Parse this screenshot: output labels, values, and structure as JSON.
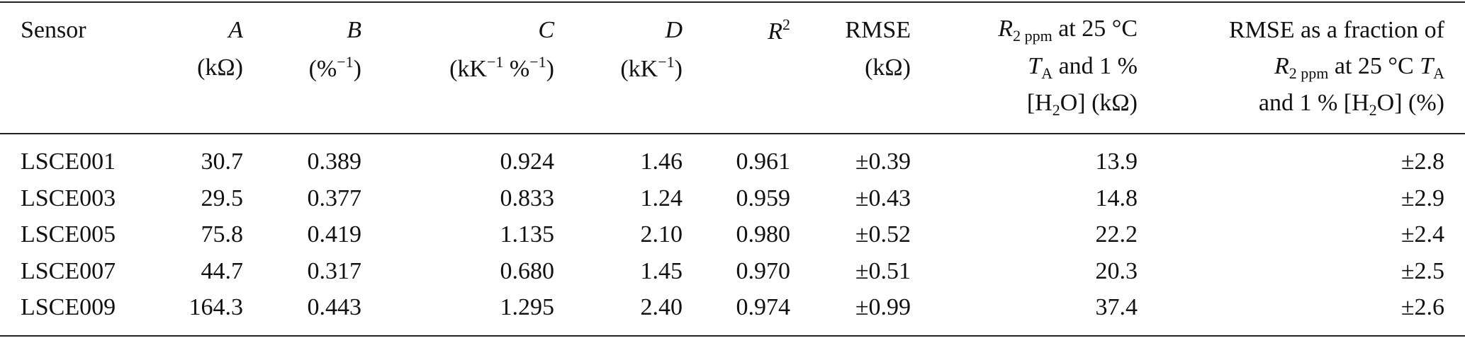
{
  "table": {
    "columns": [
      {
        "lines": [
          [
            {
              "text": "Sensor"
            }
          ]
        ]
      },
      {
        "lines": [
          [
            {
              "text": "A",
              "style": "italic"
            }
          ],
          [
            {
              "text": "(kΩ)"
            }
          ]
        ]
      },
      {
        "lines": [
          [
            {
              "text": "B",
              "style": "italic"
            }
          ],
          [
            {
              "text": "(%"
            },
            {
              "text": "−1",
              "style": "sup"
            },
            {
              "text": ")"
            }
          ]
        ]
      },
      {
        "lines": [
          [
            {
              "text": "C",
              "style": "italic"
            }
          ],
          [
            {
              "text": "(kK"
            },
            {
              "text": "−1",
              "style": "sup"
            },
            {
              "text": " %"
            },
            {
              "text": "−1",
              "style": "sup"
            },
            {
              "text": ")"
            }
          ]
        ]
      },
      {
        "lines": [
          [
            {
              "text": "D",
              "style": "italic"
            }
          ],
          [
            {
              "text": "(kK"
            },
            {
              "text": "−1",
              "style": "sup"
            },
            {
              "text": ")"
            }
          ]
        ]
      },
      {
        "lines": [
          [
            {
              "text": "R",
              "style": "italic"
            },
            {
              "text": "2",
              "style": "sup"
            }
          ]
        ]
      },
      {
        "lines": [
          [
            {
              "text": "RMSE"
            }
          ],
          [
            {
              "text": "(kΩ)"
            }
          ]
        ]
      },
      {
        "lines": [
          [
            {
              "text": "R",
              "style": "italic"
            },
            {
              "text": "2 ppm",
              "style": "sub"
            },
            {
              "text": " at 25 °C"
            }
          ],
          [
            {
              "text": "T",
              "style": "italic"
            },
            {
              "text": "A",
              "style": "sub"
            },
            {
              "text": " and 1 %"
            }
          ],
          [
            {
              "text": "[H"
            },
            {
              "text": "2",
              "style": "sub"
            },
            {
              "text": "O] (kΩ)"
            }
          ]
        ]
      },
      {
        "lines": [
          [
            {
              "text": "RMSE as a fraction of"
            }
          ],
          [
            {
              "text": "R",
              "style": "italic"
            },
            {
              "text": "2 ppm",
              "style": "sub"
            },
            {
              "text": " at 25 °C "
            },
            {
              "text": "T",
              "style": "italic"
            },
            {
              "text": "A",
              "style": "sub"
            }
          ],
          [
            {
              "text": "and 1 % [H"
            },
            {
              "text": "2",
              "style": "sub"
            },
            {
              "text": "O] (%)"
            }
          ]
        ]
      }
    ],
    "rows": [
      [
        "LSCE001",
        "30.7",
        "0.389",
        "0.924",
        "1.46",
        "0.961",
        "±0.39",
        "13.9",
        "±2.8"
      ],
      [
        "LSCE003",
        "29.5",
        "0.377",
        "0.833",
        "1.24",
        "0.959",
        "±0.43",
        "14.8",
        "±2.9"
      ],
      [
        "LSCE005",
        "75.8",
        "0.419",
        "1.135",
        "2.10",
        "0.980",
        "±0.52",
        "22.2",
        "±2.4"
      ],
      [
        "LSCE007",
        "44.7",
        "0.317",
        "0.680",
        "1.45",
        "0.970",
        "±0.51",
        "20.3",
        "±2.5"
      ],
      [
        "LSCE009",
        "164.3",
        "0.443",
        "1.295",
        "2.40",
        "0.974",
        "±0.99",
        "37.4",
        "±2.6"
      ]
    ]
  }
}
